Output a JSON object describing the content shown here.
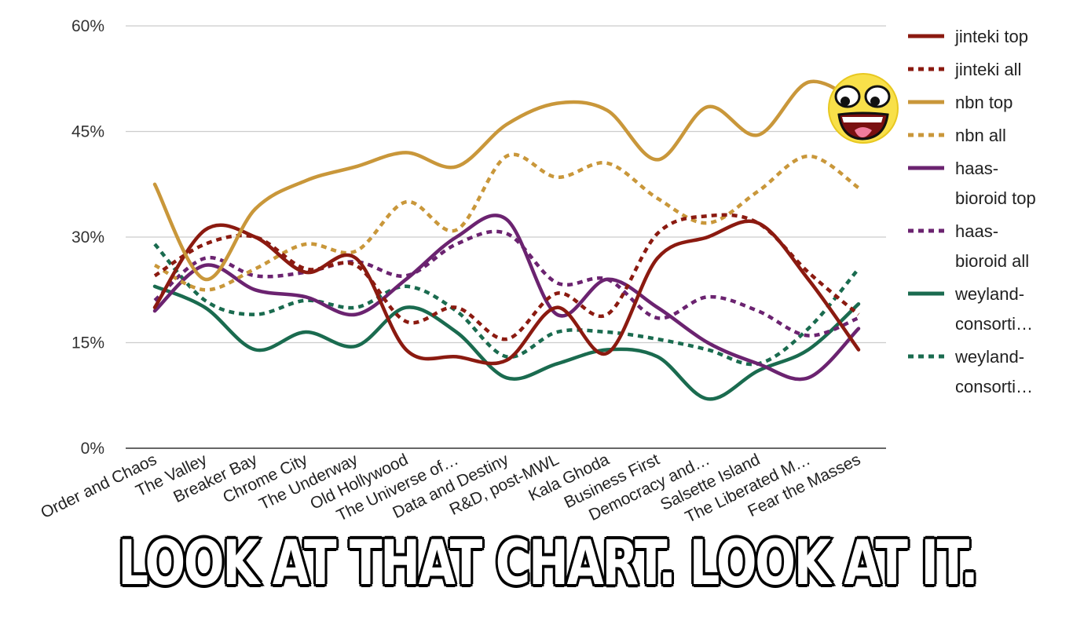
{
  "chart_data": {
    "type": "line",
    "categories": [
      "Order and Chaos",
      "The Valley",
      "Breaker Bay",
      "Chrome City",
      "The Underway",
      "Old Hollywood",
      "The Universe of…",
      "Data and Destiny",
      "R&D, post-MWL",
      "Kala Ghoda",
      "Business First",
      "Democracy and…",
      "Salsette Island",
      "The Liberated M…",
      "Fear the Masses"
    ],
    "y_ticks": [
      "0%",
      "15%",
      "30%",
      "45%",
      "60%"
    ],
    "ylim": [
      0,
      60
    ],
    "grid": true,
    "legend_position": "right",
    "series": [
      {
        "name": "jinteki top",
        "color": "#8b1a10",
        "dashed": false,
        "values": [
          20,
          31,
          30,
          25,
          27,
          14,
          13,
          12.5,
          20,
          13.5,
          27,
          30,
          32,
          24,
          14
        ]
      },
      {
        "name": "jinteki all",
        "color": "#8b1a10",
        "dashed": true,
        "values": [
          24.5,
          29,
          30,
          25.5,
          26,
          18,
          20,
          15.5,
          22,
          19,
          30.5,
          33,
          32,
          25,
          19
        ]
      },
      {
        "name": "nbn top",
        "color": "#c9973a",
        "dashed": false,
        "values": [
          37.5,
          24,
          34,
          38,
          40,
          42,
          40,
          46,
          49,
          48,
          41,
          48.5,
          44.5,
          52,
          49
        ]
      },
      {
        "name": "nbn all",
        "color": "#c9973a",
        "dashed": true,
        "values": [
          26,
          22.5,
          25.5,
          29,
          28,
          35,
          31,
          41.5,
          38.5,
          40.5,
          35.5,
          32,
          36.5,
          41.5,
          37
        ]
      },
      {
        "name": "haas-bioroid top",
        "label_lines": [
          "haas-",
          "bioroid top"
        ],
        "color": "#6b2370",
        "dashed": false,
        "values": [
          19.5,
          26,
          22.5,
          21.5,
          19,
          24,
          30,
          32.5,
          19,
          24,
          20,
          15,
          12,
          10,
          17
        ]
      },
      {
        "name": "haas-bioroid all",
        "label_lines": [
          "haas-",
          "bioroid all"
        ],
        "color": "#6b2370",
        "dashed": true,
        "values": [
          21,
          27,
          24.5,
          25,
          26.5,
          24.5,
          29,
          30.5,
          23.5,
          24,
          18.5,
          21.5,
          19.5,
          16,
          18.5
        ]
      },
      {
        "name": "weyland-consortium top",
        "label_lines": [
          "weyland-",
          "consorti…"
        ],
        "color": "#1a6b4f",
        "dashed": false,
        "values": [
          23,
          20,
          14,
          16.5,
          14.5,
          20,
          16.5,
          10,
          12,
          14,
          13,
          7,
          11,
          14,
          20.5
        ]
      },
      {
        "name": "weyland-consortium all",
        "label_lines": [
          "weyland-",
          "consorti…"
        ],
        "color": "#1a6b4f",
        "dashed": true,
        "values": [
          29,
          21,
          19,
          21,
          20,
          23,
          19.5,
          13,
          16.5,
          16.5,
          15.5,
          14,
          12,
          17,
          25.5
        ]
      }
    ]
  },
  "caption": "LOOK AT THAT CHART.  LOOK AT IT."
}
